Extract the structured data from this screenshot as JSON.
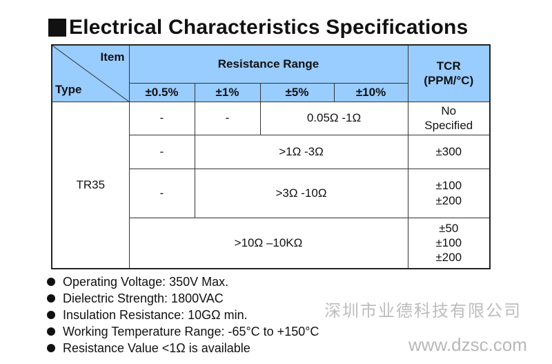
{
  "title": "Electrical Characteristics Specifications",
  "table": {
    "corner_item": "Item",
    "corner_type": "Type",
    "resistance_range_header": "Resistance Range",
    "tcr_header_line1": "TCR",
    "tcr_header_line2": "(PPM/°C)",
    "tolerances": [
      "±0.5%",
      "±1%",
      "±5%",
      "±10%"
    ],
    "type_name": "TR35",
    "rows": [
      {
        "c1": "-",
        "c2": "-",
        "range": "0.05Ω -1Ω",
        "tcr": [
          "No",
          "Specified"
        ]
      },
      {
        "c1": "-",
        "range": ">1Ω -3Ω",
        "tcr": [
          "±300"
        ]
      },
      {
        "c1": "-",
        "range": ">3Ω -10Ω",
        "tcr": [
          "±100",
          "±200"
        ]
      },
      {
        "range": ">10Ω –10KΩ",
        "tcr": [
          "±50",
          "±100",
          "±200"
        ]
      }
    ]
  },
  "notes": [
    "Operating Voltage: 350V Max.",
    "Dielectric Strength: 1800VAC",
    "Insulation Resistance: 10GΩ min.",
    "Working Temperature Range: -65°C to +150°C",
    "Resistance Value <1Ω is available"
  ],
  "watermark_cn": "深圳市业德科技有限公司",
  "watermark_url": "www.dzsc.com"
}
